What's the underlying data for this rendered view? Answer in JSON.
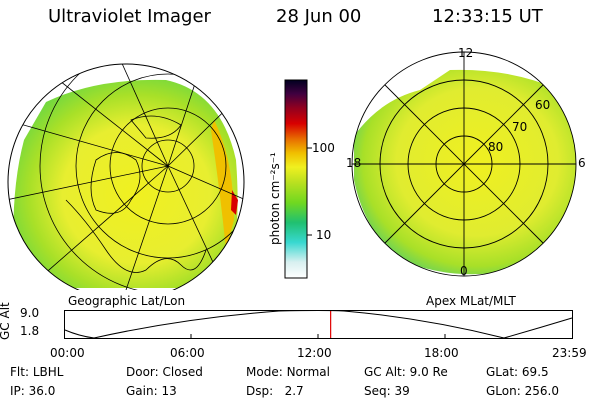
{
  "header": {
    "title": "Ultraviolet Imager",
    "date": "28 Jun 00",
    "time": "12:33:15 UT"
  },
  "colorbar": {
    "unit_label": "photon cm⁻²s⁻¹",
    "tick_100": "100",
    "tick_10": "10",
    "colors": [
      "#ffffff",
      "#d8f0f0",
      "#38d8d0",
      "#20c070",
      "#70d820",
      "#b8e020",
      "#f0f020",
      "#f0c000",
      "#e87000",
      "#d80000",
      "#900020",
      "#400040",
      "#000020"
    ]
  },
  "left_panel": {
    "caption": "Geographic Lat/Lon"
  },
  "right_panel": {
    "caption": "Apex MLat/MLT",
    "mlt_labels": {
      "top": "12",
      "bottom": "0",
      "left": "18",
      "right": "6"
    },
    "lat_labels": [
      "60",
      "70",
      "80"
    ]
  },
  "timeline": {
    "axis_label": "GC Alt",
    "y_max": "9.0",
    "y_min": "1.8",
    "ticks": [
      "00:00",
      "06:00",
      "12:00",
      "18:00",
      "23:59"
    ],
    "current_time_hours": 12.55,
    "marker_color": "#e00000"
  },
  "info": {
    "row1": [
      {
        "label": "Flt:",
        "value": "LBHL"
      },
      {
        "label": "Door:",
        "value": "Closed"
      },
      {
        "label": "Mode:",
        "value": "Normal"
      },
      {
        "label": "GC Alt:",
        "value": "9.0 Re"
      },
      {
        "label": "GLat:",
        "value": "69.5"
      }
    ],
    "row2": [
      {
        "label": "IP:",
        "value": "36.0"
      },
      {
        "label": "Gain:",
        "value": "13"
      },
      {
        "label": "Dsp:",
        "value": "2.7"
      },
      {
        "label": "Seq:",
        "value": "39"
      },
      {
        "label": "GLon:",
        "value": "256.0"
      }
    ]
  }
}
